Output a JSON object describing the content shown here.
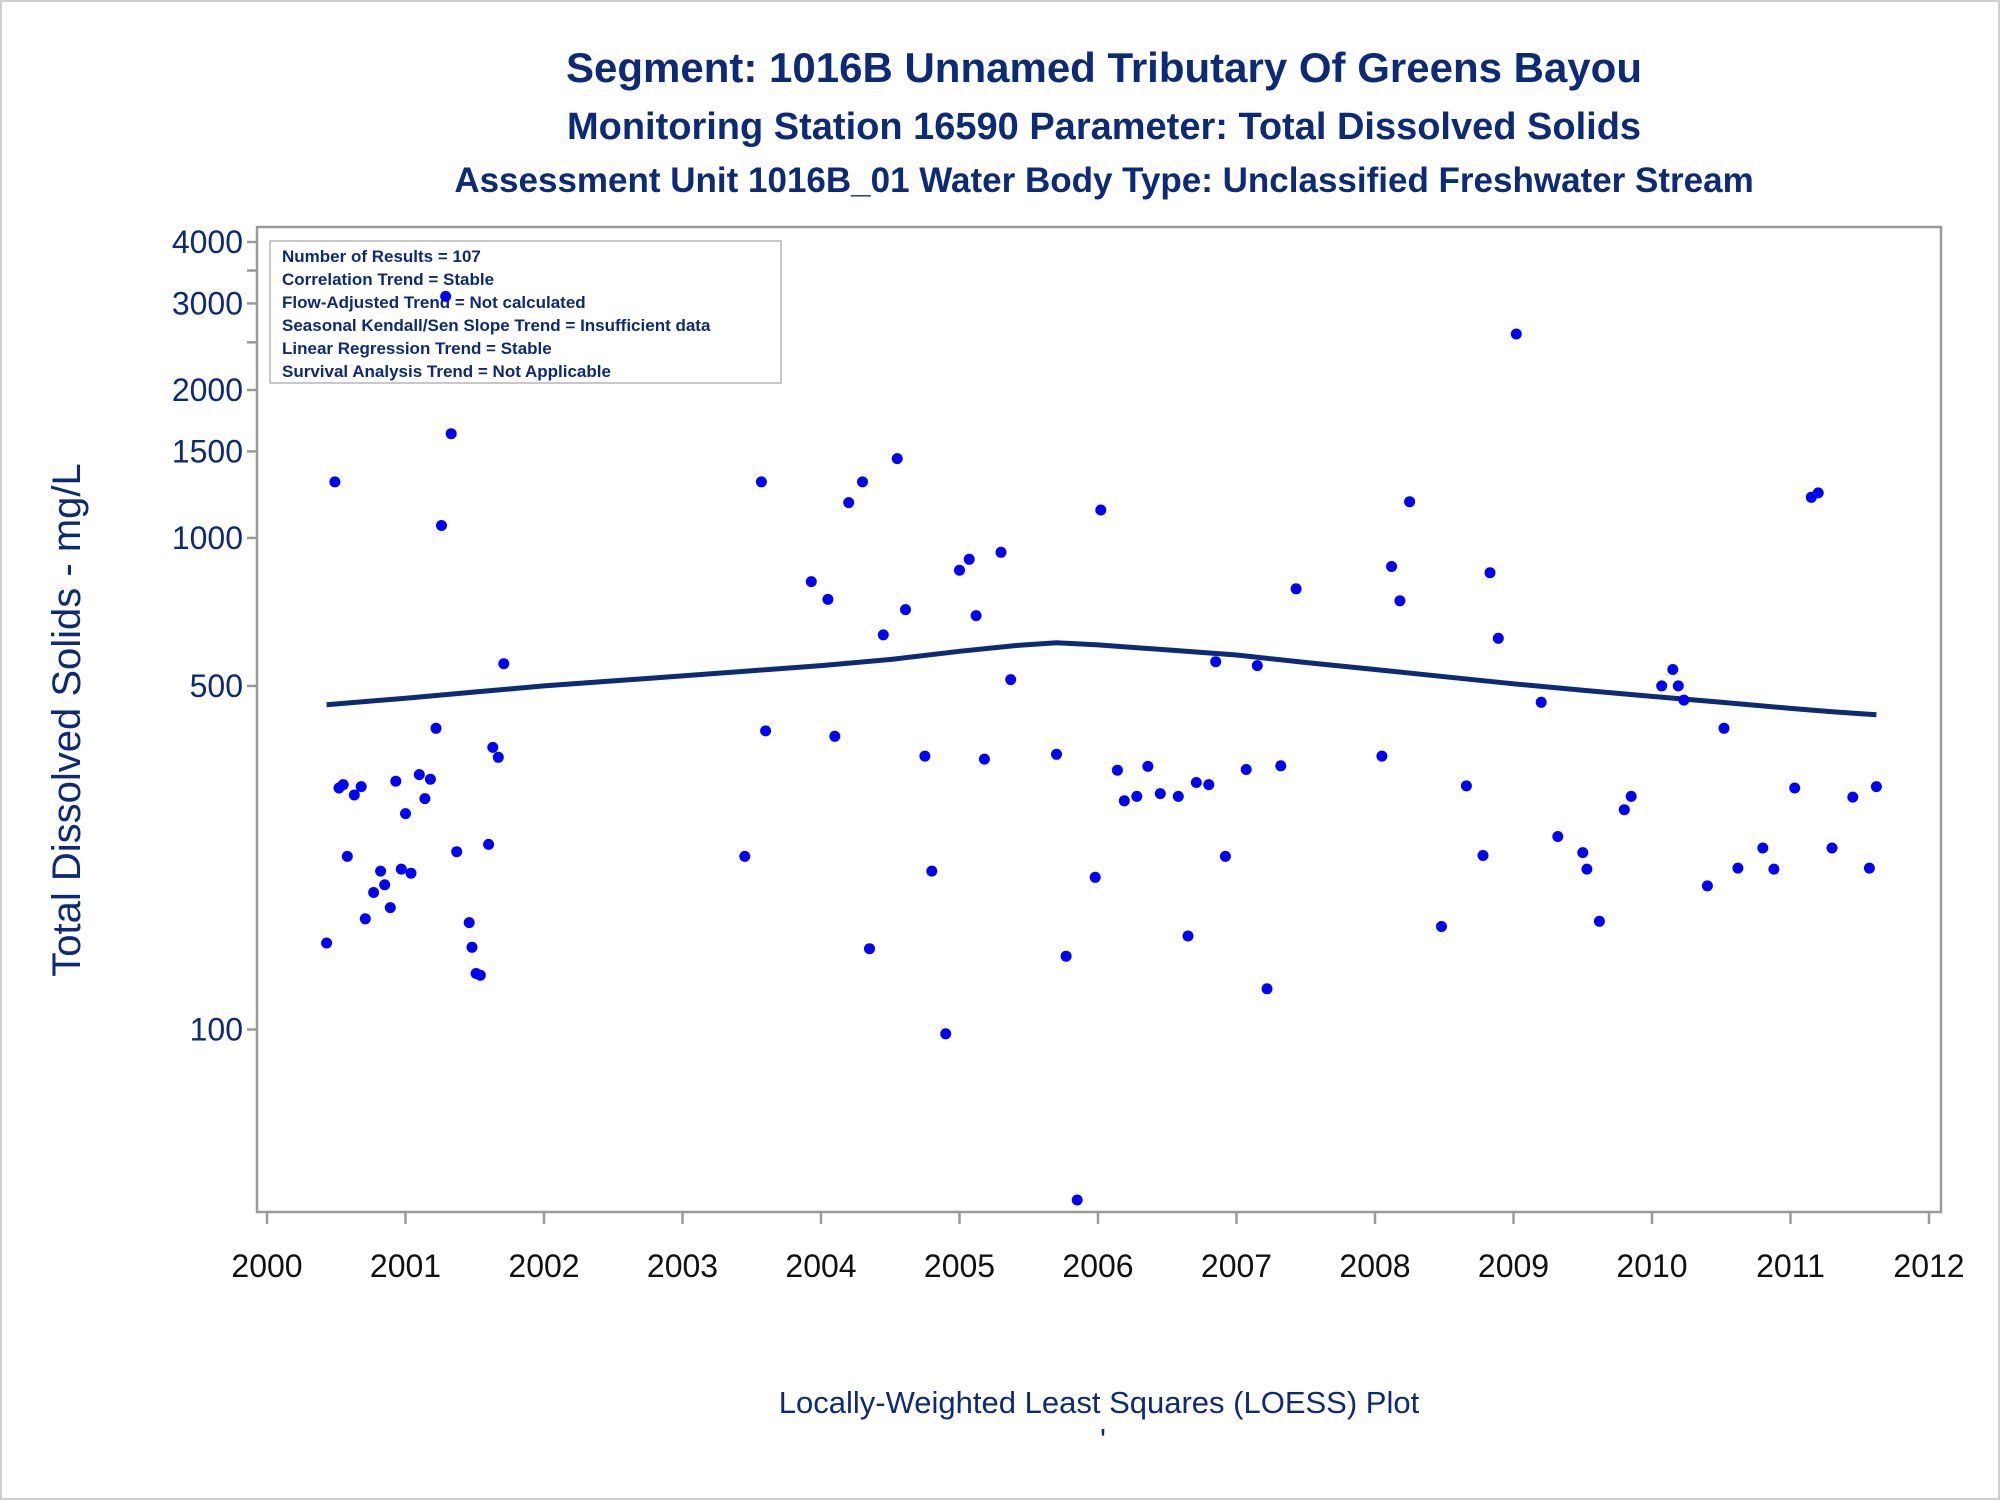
{
  "title": "Segment: 1016B  Unnamed Tributary Of Greens Bayou",
  "subtitle": "Monitoring Station 16590 Parameter: Total Dissolved Solids",
  "subtitle2": "Assessment Unit 1016B_01   Water Body Type: Unclassified Freshwater Stream",
  "footnote": "Locally-Weighted Least Squares (LOESS) Plot",
  "footnote_mark": "'",
  "colors": {
    "text": "#0b2a7a",
    "points": "#0000ff",
    "loess": "#0b2a7a",
    "axis": "#9a9a9a"
  },
  "info_box": [
    "Number of Results = 107",
    "Correlation Trend = Stable",
    "Flow-Adjusted Trend = Not calculated",
    "Seasonal Kendall/Sen Slope Trend = Insufficient data",
    "Linear Regression Trend = Stable",
    "Survival Analysis Trend = Not Applicable"
  ],
  "chart_data": {
    "type": "scatter",
    "title": "Segment: 1016B  Unnamed Tributary Of Greens Bayou",
    "ylabel": "Total Dissolved Solids - mg/L",
    "xlabel": "",
    "y_scale": "log",
    "ylim": [
      40,
      4300
    ],
    "xlim": [
      1999.9,
      2012.1
    ],
    "y_ticks": [
      100,
      500,
      1000,
      1500,
      2000,
      3000,
      4000
    ],
    "y_tick_labels": [
      "100",
      "500",
      "1000",
      "1500",
      "2000",
      "3000",
      "4000"
    ],
    "y_minor_ticks": [
      2500,
      3500
    ],
    "x_ticks": [
      2000,
      2001,
      2002,
      2003,
      2004,
      2005,
      2006,
      2007,
      2008,
      2009,
      2010,
      2011,
      2012
    ],
    "x_tick_labels": [
      "2000",
      "2001",
      "2002",
      "2003",
      "2004",
      "2005",
      "2006",
      "2007",
      "2008",
      "2009",
      "2010",
      "2011",
      "2012"
    ],
    "grid": false,
    "series": [
      {
        "kind": "points",
        "x": [
          2000.43,
          2000.49,
          2000.52,
          2000.55,
          2000.58,
          2000.63,
          2000.68,
          2000.71,
          2000.77,
          2000.82,
          2000.85,
          2000.89,
          2000.93,
          2000.97,
          2001.0,
          2001.04,
          2001.1,
          2001.14,
          2001.18,
          2001.22,
          2001.26,
          2001.29,
          2001.33,
          2001.37,
          2001.46,
          2001.48,
          2001.51,
          2001.54,
          2001.6,
          2001.63,
          2001.67,
          2001.71,
          2003.45,
          2003.57,
          2003.6,
          2003.93,
          2004.05,
          2004.1,
          2004.2,
          2004.3,
          2004.35,
          2004.45,
          2004.55,
          2004.61,
          2004.75,
          2004.8,
          2004.9,
          2005.0,
          2005.07,
          2005.12,
          2005.18,
          2005.3,
          2005.37,
          2005.7,
          2005.77,
          2005.85,
          2005.98,
          2006.02,
          2006.14,
          2006.19,
          2006.28,
          2006.36,
          2006.45,
          2006.58,
          2006.65,
          2006.71,
          2006.8,
          2006.85,
          2006.92,
          2007.07,
          2007.15,
          2007.22,
          2007.32,
          2007.43,
          2008.05,
          2008.12,
          2008.18,
          2008.25,
          2008.48,
          2008.66,
          2008.78,
          2008.83,
          2008.89,
          2009.02,
          2009.2,
          2009.32,
          2009.5,
          2009.53,
          2009.62,
          2009.8,
          2009.85,
          2010.07,
          2010.15,
          2010.19,
          2010.23,
          2010.4,
          2010.52,
          2010.62,
          2010.8,
          2010.88,
          2011.03,
          2011.15,
          2011.2,
          2011.3,
          2011.45,
          2011.57,
          2011.62
        ],
        "y": [
          150,
          1300,
          310,
          315,
          225,
          300,
          312,
          168,
          190,
          210,
          197,
          177,
          320,
          212,
          275,
          208,
          330,
          295,
          323,
          410,
          1060,
          3100,
          1630,
          230,
          165,
          147,
          130,
          129,
          238,
          375,
          358,
          555,
          225,
          1300,
          405,
          815,
          750,
          395,
          1180,
          1300,
          146,
          635,
          1450,
          715,
          360,
          210,
          98,
          860,
          905,
          695,
          355,
          935,
          515,
          363,
          141,
          45,
          204,
          1140,
          337,
          292,
          298,
          343,
          302,
          298,
          155,
          318,
          315,
          560,
          225,
          338,
          550,
          121,
          344,
          788,
          360,
          875,
          745,
          1185,
          162,
          313,
          226,
          850,
          625,
          2600,
          463,
          247,
          229,
          212,
          166,
          280,
          298,
          500,
          540,
          500,
          468,
          196,
          410,
          213,
          234,
          212,
          310,
          1210,
          1235,
          234,
          297,
          213,
          312
        ]
      },
      {
        "kind": "line",
        "name": "LOESS",
        "x": [
          2000.43,
          2001.0,
          2001.5,
          2002.0,
          2002.5,
          2003.0,
          2003.5,
          2004.0,
          2004.5,
          2005.0,
          2005.4,
          2005.7,
          2006.0,
          2006.5,
          2007.0,
          2007.5,
          2008.0,
          2008.5,
          2009.0,
          2009.5,
          2010.0,
          2010.5,
          2011.0,
          2011.3,
          2011.62
        ],
        "y": [
          458,
          472,
          486,
          500,
          512,
          524,
          537,
          550,
          566,
          588,
          604,
          612,
          606,
          592,
          578,
          558,
          540,
          522,
          505,
          490,
          476,
          463,
          450,
          443,
          437
        ]
      }
    ]
  }
}
